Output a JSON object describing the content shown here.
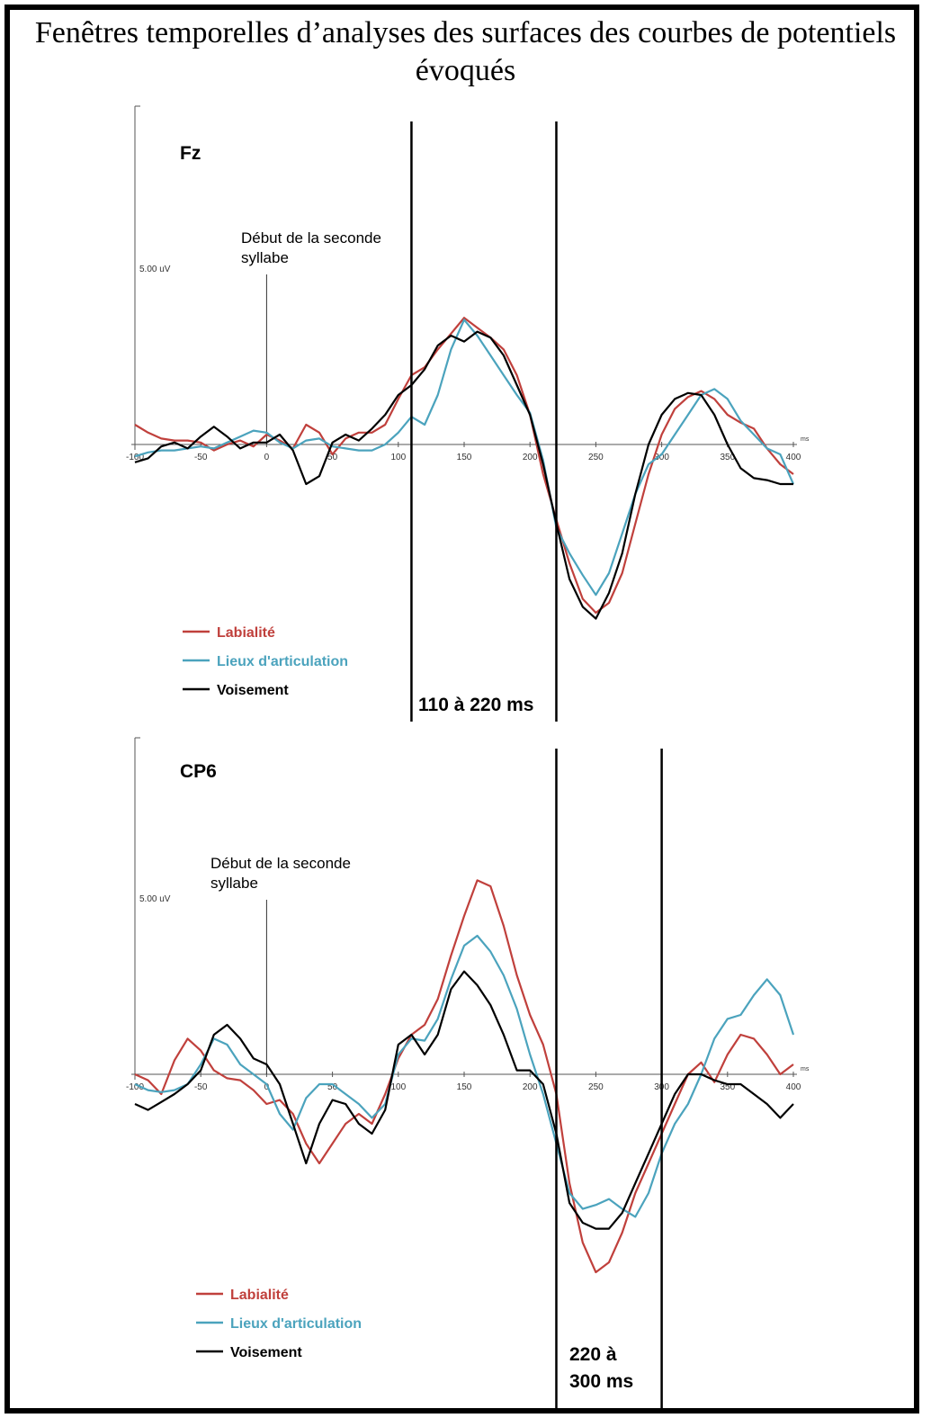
{
  "title": "Fenêtres temporelles d’analyses des surfaces des courbes de potentiels évoqués",
  "legend_colors": {
    "Labialité": "#c0403c",
    "Lieux d'articulation": "#4ba3bd",
    "Voisement": "#000000"
  },
  "chart_data": [
    {
      "type": "line",
      "title": "Fz",
      "xunit": "ms",
      "yscale_label": "5.00 uV",
      "xticks": [
        -100,
        -50,
        0,
        50,
        100,
        150,
        200,
        250,
        300,
        350,
        400
      ],
      "xlim": [
        -100,
        400
      ],
      "onset_annotation": "Début de la seconde syllabe",
      "onset_annotation_lines": [
        "Début de la seconde",
        "syllabe"
      ],
      "window": {
        "label": "110 à 220 ms",
        "label_lines": [
          "110 à 220 ms"
        ],
        "start": 110,
        "end": 220
      },
      "legend": [
        "Labialité",
        "Lieux d'articulation",
        "Voisement"
      ],
      "x": [
        -100,
        -90,
        -80,
        -70,
        -60,
        -50,
        -40,
        -30,
        -20,
        -10,
        0,
        10,
        20,
        30,
        40,
        50,
        60,
        70,
        80,
        90,
        100,
        110,
        120,
        130,
        140,
        150,
        160,
        170,
        180,
        190,
        200,
        210,
        220,
        230,
        240,
        250,
        260,
        270,
        280,
        290,
        300,
        310,
        320,
        330,
        340,
        350,
        360,
        370,
        380,
        390,
        400
      ],
      "series": [
        {
          "name": "Labialité",
          "color": "#c0403c",
          "values": [
            1.0,
            0.6,
            0.3,
            0.2,
            0.2,
            0.1,
            -0.3,
            0.0,
            0.2,
            -0.1,
            0.5,
            0.2,
            -0.2,
            1.0,
            0.6,
            -0.5,
            0.3,
            0.6,
            0.6,
            1.0,
            2.3,
            3.5,
            3.9,
            4.8,
            5.6,
            6.4,
            5.9,
            5.4,
            4.8,
            3.5,
            1.5,
            -1.5,
            -3.8,
            -6.0,
            -7.8,
            -8.5,
            -8.0,
            -6.5,
            -4.0,
            -1.5,
            0.5,
            1.8,
            2.4,
            2.7,
            2.3,
            1.5,
            1.1,
            0.8,
            -0.2,
            -1.0,
            -1.5
          ]
        },
        {
          "name": "Lieux d'articulation",
          "color": "#4ba3bd",
          "values": [
            -0.6,
            -0.4,
            -0.3,
            -0.3,
            -0.2,
            -0.1,
            -0.2,
            0.1,
            0.4,
            0.7,
            0.6,
            0.1,
            -0.2,
            0.2,
            0.3,
            -0.1,
            -0.2,
            -0.3,
            -0.3,
            0.0,
            0.6,
            1.4,
            1.0,
            2.5,
            4.8,
            6.3,
            5.5,
            4.5,
            3.5,
            2.5,
            1.6,
            -0.8,
            -4.2,
            -5.5,
            -6.6,
            -7.6,
            -6.5,
            -4.5,
            -2.5,
            -1.0,
            -0.5,
            0.5,
            1.5,
            2.5,
            2.8,
            2.3,
            1.2,
            0.5,
            -0.2,
            -0.5,
            -2.0
          ]
        },
        {
          "name": "Voisement",
          "color": "#000000",
          "values": [
            -0.9,
            -0.7,
            -0.1,
            0.1,
            -0.2,
            0.4,
            0.9,
            0.4,
            -0.2,
            0.1,
            0.1,
            0.5,
            -0.3,
            -2.0,
            -1.6,
            0.1,
            0.5,
            0.2,
            0.8,
            1.5,
            2.5,
            3.0,
            3.8,
            5.0,
            5.5,
            5.2,
            5.7,
            5.4,
            4.5,
            3.0,
            1.5,
            -1.0,
            -4.0,
            -6.8,
            -8.2,
            -8.8,
            -7.5,
            -5.5,
            -2.5,
            0.0,
            1.5,
            2.3,
            2.6,
            2.5,
            1.5,
            0.0,
            -1.2,
            -1.7,
            -1.8,
            -2.0,
            -2.0
          ]
        }
      ]
    },
    {
      "type": "line",
      "title": "CP6",
      "xunit": "ms",
      "yscale_label": "5.00 uV",
      "xticks": [
        -100,
        -50,
        0,
        50,
        100,
        150,
        200,
        250,
        300,
        350,
        400
      ],
      "xlim": [
        -100,
        400
      ],
      "onset_annotation": "Début de la seconde syllabe",
      "onset_annotation_lines": [
        "Début de la seconde",
        "syllabe"
      ],
      "window": {
        "label": "220 à 300 ms",
        "label_lines": [
          "220 à",
          "300 ms"
        ],
        "start": 220,
        "end": 300
      },
      "legend": [
        "Labialité",
        "Lieux d'articulation",
        "Voisement"
      ],
      "x": [
        -100,
        -90,
        -80,
        -70,
        -60,
        -50,
        -40,
        -30,
        -20,
        -10,
        0,
        10,
        20,
        30,
        40,
        50,
        60,
        70,
        80,
        90,
        100,
        110,
        120,
        130,
        140,
        150,
        160,
        170,
        180,
        190,
        200,
        210,
        220,
        230,
        240,
        250,
        260,
        270,
        280,
        290,
        300,
        310,
        320,
        330,
        340,
        350,
        360,
        370,
        380,
        390,
        400
      ],
      "series": [
        {
          "name": "Labialité",
          "color": "#c0403c",
          "values": [
            0.0,
            -0.3,
            -1.0,
            0.7,
            1.8,
            1.2,
            0.2,
            -0.2,
            -0.3,
            -0.8,
            -1.5,
            -1.3,
            -2.0,
            -3.5,
            -4.5,
            -3.5,
            -2.5,
            -2.0,
            -2.5,
            -1.0,
            0.8,
            2.0,
            2.5,
            3.8,
            6.0,
            8.0,
            9.8,
            9.5,
            7.5,
            5.0,
            3.0,
            1.5,
            -1.0,
            -5.5,
            -8.5,
            -10.0,
            -9.5,
            -8.0,
            -6.0,
            -4.5,
            -3.0,
            -1.5,
            0.0,
            0.6,
            -0.4,
            1.0,
            2.0,
            1.8,
            1.0,
            0.0,
            0.5
          ]
        },
        {
          "name": "Lieux d'articulation",
          "color": "#4ba3bd",
          "values": [
            -0.5,
            -0.8,
            -0.9,
            -0.8,
            -0.5,
            0.5,
            1.8,
            1.5,
            0.5,
            0.0,
            -0.5,
            -2.0,
            -2.8,
            -1.2,
            -0.5,
            -0.5,
            -1.0,
            -1.5,
            -2.2,
            -1.5,
            1.0,
            1.8,
            1.7,
            2.8,
            4.8,
            6.5,
            7.0,
            6.2,
            5.0,
            3.3,
            1.0,
            -1.0,
            -3.5,
            -6.0,
            -6.8,
            -6.6,
            -6.3,
            -6.8,
            -7.2,
            -6.0,
            -4.0,
            -2.5,
            -1.5,
            0.0,
            1.8,
            2.8,
            3.0,
            4.0,
            4.8,
            4.0,
            2.0
          ]
        },
        {
          "name": "Voisement",
          "color": "#000000",
          "values": [
            -1.5,
            -1.8,
            -1.4,
            -1.0,
            -0.5,
            0.2,
            2.0,
            2.5,
            1.8,
            0.8,
            0.5,
            -0.5,
            -2.5,
            -4.5,
            -2.5,
            -1.3,
            -1.5,
            -2.5,
            -3.0,
            -1.8,
            1.5,
            2.0,
            1.0,
            2.0,
            4.3,
            5.2,
            4.5,
            3.5,
            2.0,
            0.2,
            0.2,
            -0.5,
            -3.0,
            -6.5,
            -7.5,
            -7.8,
            -7.8,
            -7.0,
            -5.5,
            -4.0,
            -2.5,
            -1.0,
            0.0,
            0.0,
            -0.3,
            -0.5,
            -0.5,
            -1.0,
            -1.5,
            -2.2,
            -1.5
          ]
        }
      ]
    }
  ]
}
